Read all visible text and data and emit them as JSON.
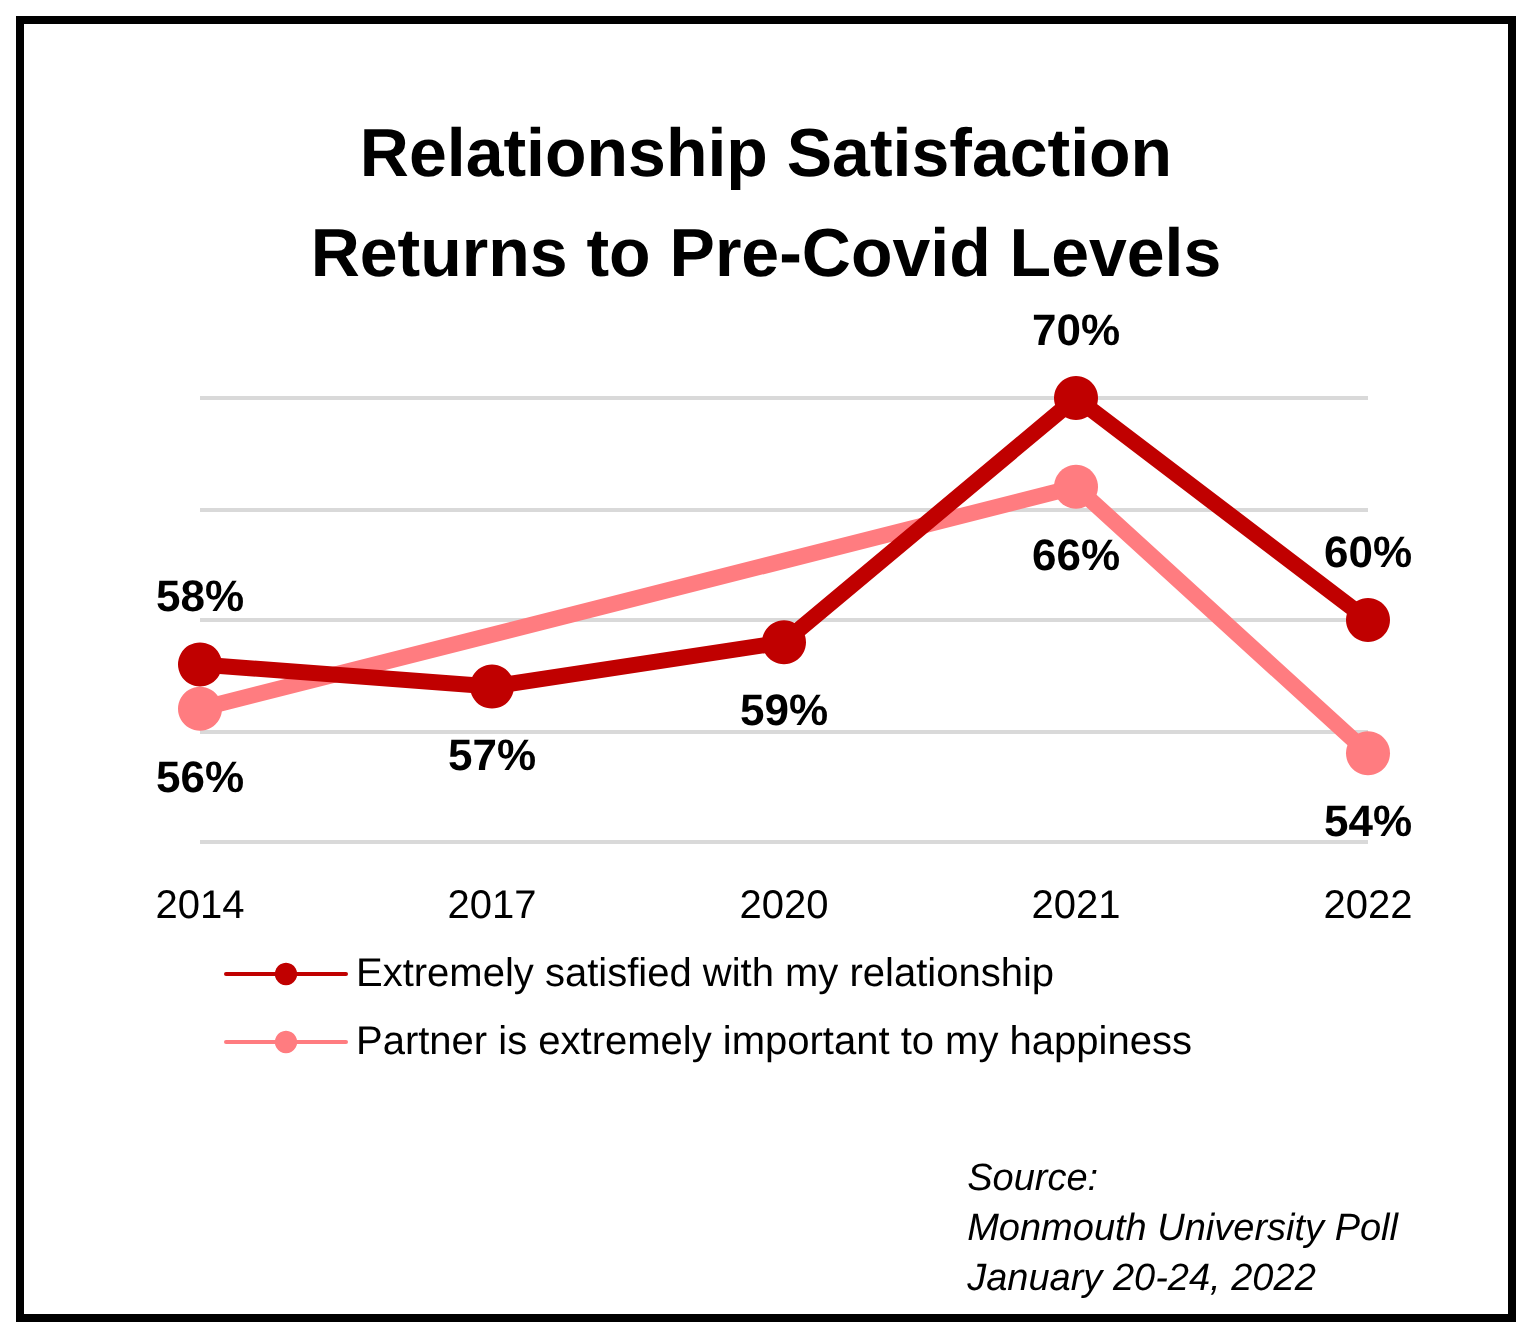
{
  "chart_data": {
    "type": "line",
    "title": "Relationship Satisfaction\nReturns to Pre-Covid Levels",
    "categories": [
      "2014",
      "2017",
      "2020",
      "2021",
      "2022"
    ],
    "series": [
      {
        "name": "Extremely satisfied with my relationship",
        "color": "#c00000",
        "values": [
          58,
          57,
          59,
          70,
          60
        ],
        "value_labels": [
          "58%",
          "57%",
          "59%",
          "70%",
          "60%"
        ]
      },
      {
        "name": "Partner is extremely important to my happiness",
        "color": "#ff7c80",
        "values": [
          56,
          null,
          null,
          66,
          54
        ],
        "value_labels": [
          "56%",
          null,
          null,
          "66%",
          "54%"
        ]
      }
    ],
    "tick_labels": "x",
    "grid": "y",
    "marker": "circle",
    "line_style": "solid",
    "legend": "bottom",
    "annotations": [
      "Source:\nMonmouth University Poll\nJanuary 20-24, 2022"
    ]
  }
}
